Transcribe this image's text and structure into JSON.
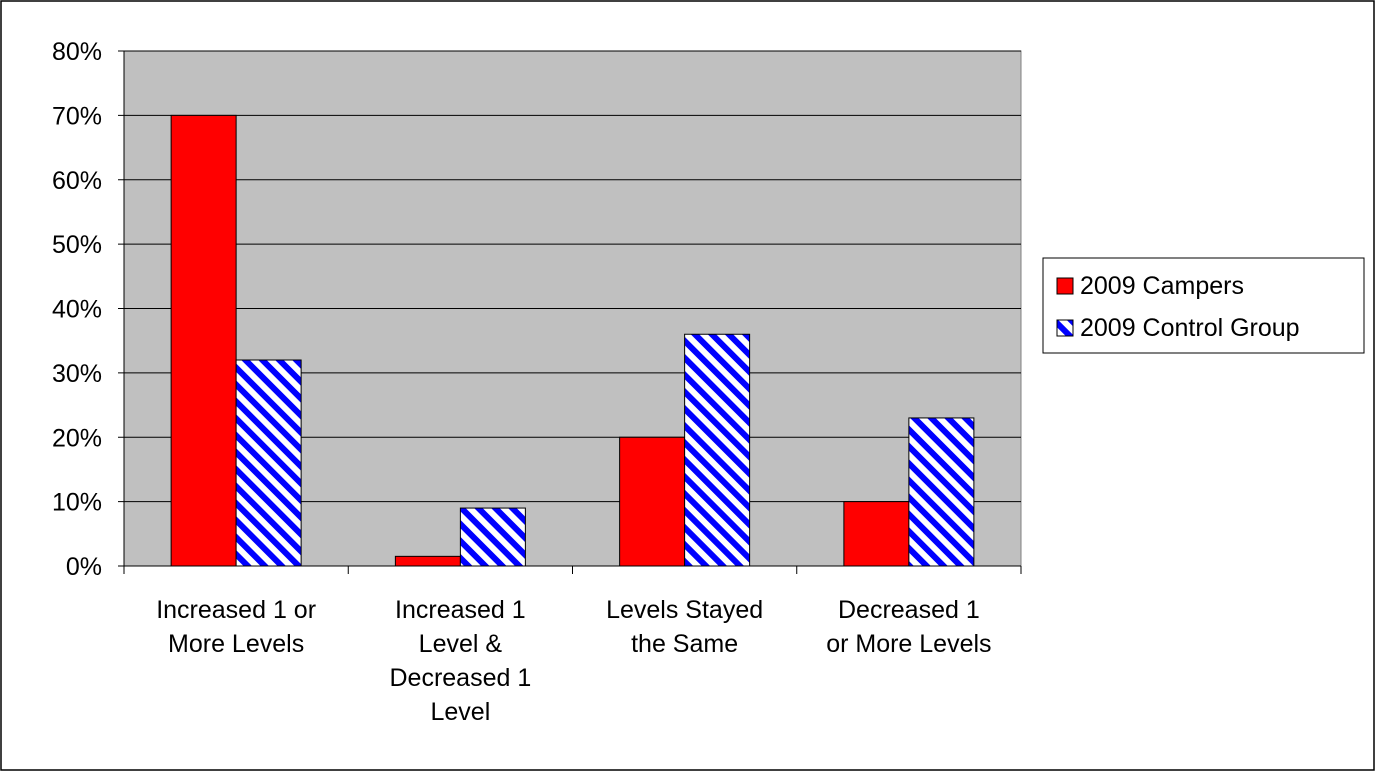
{
  "chart_data": {
    "type": "bar",
    "title": "",
    "xlabel": "",
    "ylabel": "",
    "categories": [
      [
        "Increased 1 or",
        "More Levels"
      ],
      [
        "Increased 1",
        "Level &",
        "Decreased 1",
        "Level"
      ],
      [
        "Levels Stayed",
        "the Same"
      ],
      [
        "Decreased 1",
        "or More Levels"
      ]
    ],
    "series": [
      {
        "name": "2009 Campers",
        "values": [
          70,
          1.5,
          20,
          10
        ],
        "color": "#ff0000",
        "pattern": "solid"
      },
      {
        "name": "2009 Control Group",
        "values": [
          32,
          9,
          36,
          23
        ],
        "color": "#0000ff",
        "pattern": "diagonal-stripes"
      }
    ],
    "ylim": [
      0,
      80
    ],
    "yticks": [
      0,
      10,
      20,
      30,
      40,
      50,
      60,
      70,
      80
    ],
    "ytick_format": "percent",
    "grid": true,
    "plot_background": "#c0c0c0",
    "legend_position": "right"
  }
}
